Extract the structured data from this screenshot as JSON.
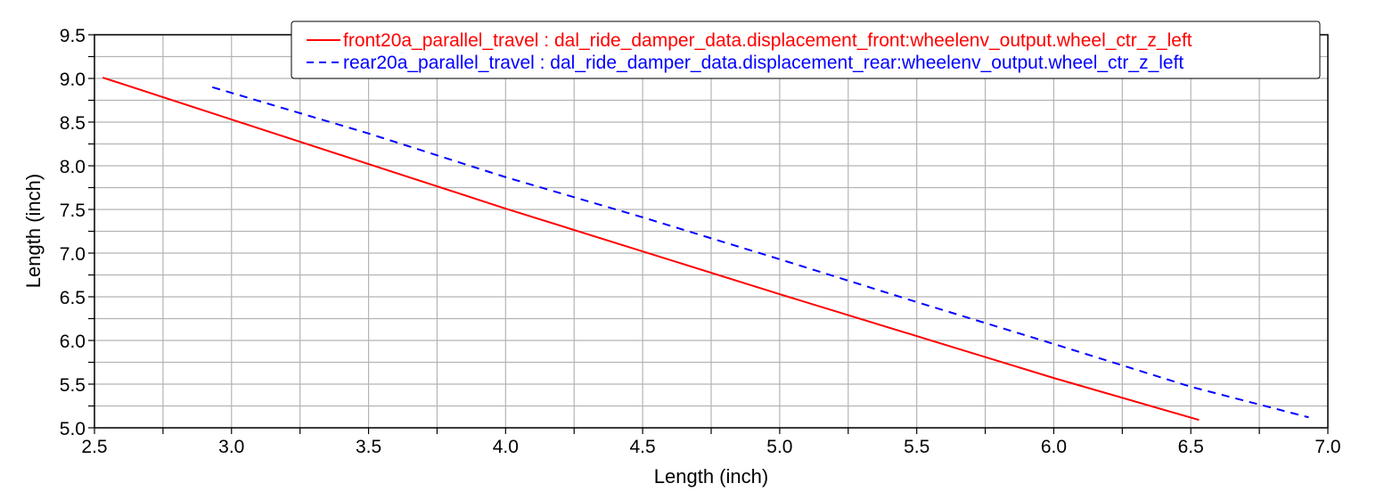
{
  "chart_data": {
    "type": "line",
    "title": "",
    "xlabel": "Length (inch)",
    "ylabel": "Length (inch)",
    "xlim": [
      2.5,
      7.0
    ],
    "ylim": [
      5.0,
      9.5
    ],
    "xticks": [
      "2.5",
      "3.0",
      "3.5",
      "4.0",
      "4.5",
      "5.0",
      "5.5",
      "6.0",
      "6.5",
      "7.0"
    ],
    "yticks": [
      "5.0",
      "5.5",
      "6.0",
      "6.5",
      "7.0",
      "7.5",
      "8.0",
      "8.5",
      "9.0",
      "9.5"
    ],
    "grid": true,
    "legend_position": "top-right",
    "series": [
      {
        "name": "front20a_parallel_travel : dal_ride_damper_data.displacement_front:wheelenv_output.wheel_ctr_z_left",
        "color": "#ff0000",
        "style": "solid",
        "x": [
          2.53,
          3.0,
          3.5,
          4.0,
          4.5,
          5.0,
          5.5,
          6.0,
          6.53
        ],
        "y": [
          9.01,
          8.53,
          8.02,
          7.51,
          7.02,
          6.53,
          6.05,
          5.57,
          5.09
        ]
      },
      {
        "name": "rear20a_parallel_travel : dal_ride_damper_data.displacement_rear:wheelenv_output.wheel_ctr_z_left",
        "color": "#0000ff",
        "style": "dashed",
        "x": [
          2.93,
          3.5,
          4.0,
          4.5,
          5.0,
          5.5,
          6.0,
          6.5,
          6.93
        ],
        "y": [
          8.9,
          8.37,
          7.87,
          7.41,
          6.93,
          6.44,
          5.96,
          5.47,
          5.12
        ]
      }
    ]
  }
}
